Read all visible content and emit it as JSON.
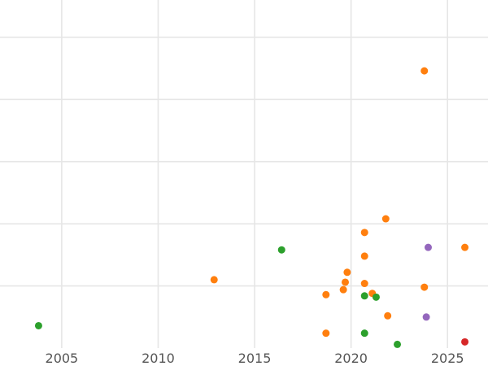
{
  "chart_data": {
    "type": "scatter",
    "title": "",
    "xlabel": "",
    "ylabel": "",
    "xlim": [
      2001.8,
      2027.1
    ],
    "ylim": [
      0,
      28
    ],
    "x_ticks": [
      2005,
      2010,
      2015,
      2020,
      2025
    ],
    "x_tick_labels": [
      "2005",
      "2010",
      "2015",
      "2020",
      "2025"
    ],
    "y_gridlines": [
      5,
      10,
      15,
      20,
      25
    ],
    "grid": true,
    "legend": "none",
    "series": [
      {
        "color": "#ff7f0e",
        "points": [
          {
            "x": 2023.8,
            "y": 22.3
          },
          {
            "x": 2021.8,
            "y": 10.4
          },
          {
            "x": 2020.7,
            "y": 9.3
          },
          {
            "x": 2020.7,
            "y": 7.4
          },
          {
            "x": 2025.9,
            "y": 8.1
          },
          {
            "x": 2019.8,
            "y": 6.1
          },
          {
            "x": 2019.7,
            "y": 5.3
          },
          {
            "x": 2020.7,
            "y": 5.2
          },
          {
            "x": 2012.9,
            "y": 5.5
          },
          {
            "x": 2019.6,
            "y": 4.7
          },
          {
            "x": 2018.7,
            "y": 4.3
          },
          {
            "x": 2021.1,
            "y": 4.4
          },
          {
            "x": 2023.8,
            "y": 4.9
          },
          {
            "x": 2021.9,
            "y": 2.6
          },
          {
            "x": 2018.7,
            "y": 1.2
          }
        ]
      },
      {
        "color": "#2ca02c",
        "points": [
          {
            "x": 2003.8,
            "y": 1.8
          },
          {
            "x": 2016.4,
            "y": 7.9
          },
          {
            "x": 2020.7,
            "y": 4.2
          },
          {
            "x": 2021.3,
            "y": 4.1
          },
          {
            "x": 2020.7,
            "y": 1.2
          },
          {
            "x": 2022.4,
            "y": 0.3
          }
        ]
      },
      {
        "color": "#9467bd",
        "points": [
          {
            "x": 2024.0,
            "y": 8.1
          },
          {
            "x": 2023.9,
            "y": 2.5
          }
        ]
      },
      {
        "color": "#d62728",
        "points": [
          {
            "x": 2025.9,
            "y": 0.5
          }
        ]
      }
    ]
  },
  "style": {
    "grid_color": "#e6e6e6",
    "background": "#ffffff",
    "tick_color": "#555555"
  }
}
